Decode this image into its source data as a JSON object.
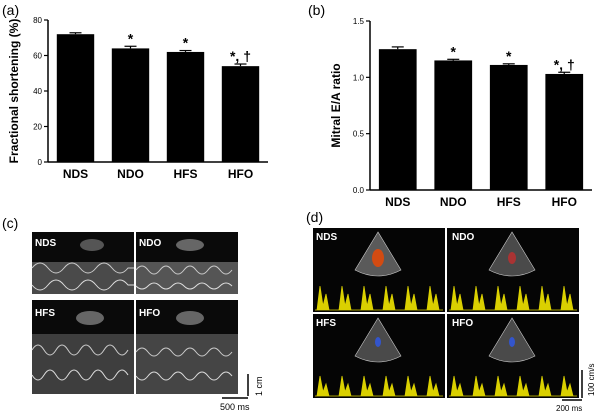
{
  "panel_labels": {
    "a": "(a)",
    "b": "(b)",
    "c": "(c)",
    "d": "(d)"
  },
  "chart_data": [
    {
      "type": "bar",
      "categories": [
        "NDS",
        "NDO",
        "HFS",
        "HFO"
      ],
      "values": [
        72,
        64,
        62,
        54
      ],
      "errors": [
        0.8,
        1.2,
        0.8,
        1.2
      ],
      "annotations": [
        "",
        "*",
        "*",
        "*, †"
      ],
      "ylabel": "Fractional shortening (%)",
      "ylim": [
        0,
        80
      ],
      "yticks": [
        "0",
        "20",
        "40",
        "60",
        "80"
      ],
      "bar_color": "#000000"
    },
    {
      "type": "bar",
      "categories": [
        "NDS",
        "NDO",
        "HFS",
        "HFO"
      ],
      "values": [
        1.25,
        1.15,
        1.11,
        1.03
      ],
      "errors": [
        0.02,
        0.01,
        0.01,
        0.015
      ],
      "annotations": [
        "",
        "*",
        "*",
        "*, †"
      ],
      "ylabel": "Mitral E/A ratio",
      "ylim": [
        0,
        1.5
      ],
      "yticks": [
        "0.0",
        "0.5",
        "1.0",
        "1.5"
      ],
      "bar_color": "#000000"
    }
  ],
  "mmode_panels": {
    "labels": [
      "NDS",
      "NDO",
      "HFS",
      "HFO"
    ],
    "scale_y": "1 cm",
    "scale_x": "500 ms"
  },
  "doppler_panels": {
    "labels": [
      "NDS",
      "NDO",
      "HFS",
      "HFO"
    ],
    "scale_y": "100 cm/s",
    "scale_x": "200 ms",
    "trace_color": "#f2e600"
  }
}
